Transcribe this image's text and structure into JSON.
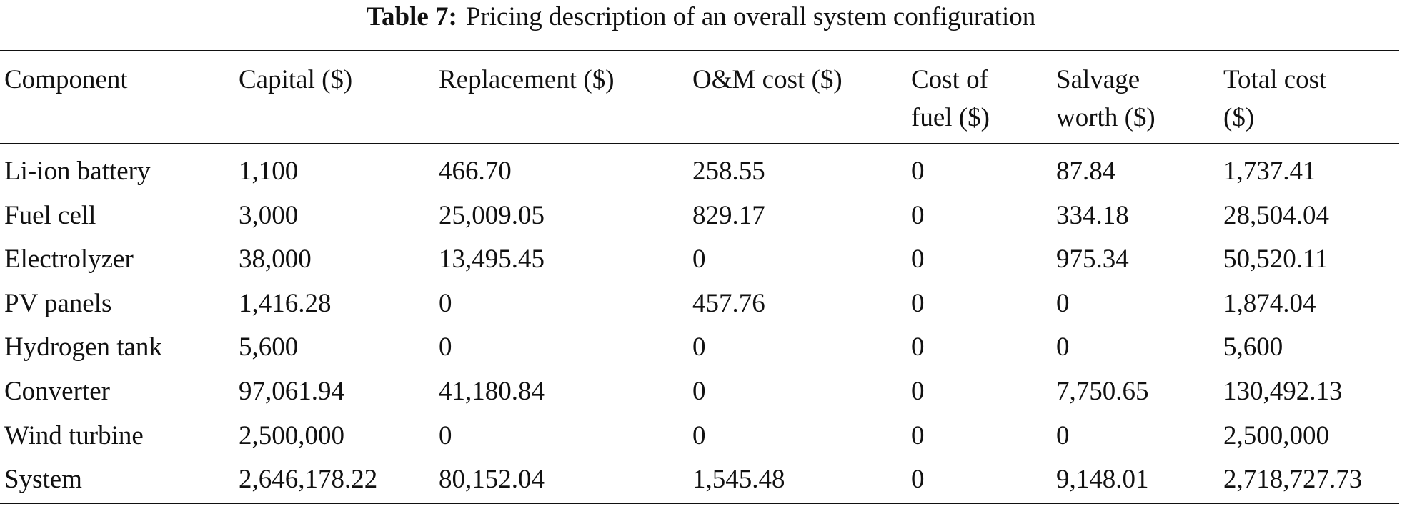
{
  "caption": {
    "label": "Table 7:",
    "text": "Pricing description of an overall system configuration"
  },
  "table": {
    "header": [
      [
        "Component"
      ],
      [
        "Capital ($)"
      ],
      [
        "Replacement ($)"
      ],
      [
        "O&M cost ($)"
      ],
      [
        "Cost of",
        "fuel ($)"
      ],
      [
        "Salvage",
        "worth ($)"
      ],
      [
        "Total cost",
        "($)"
      ]
    ],
    "rows": [
      [
        "Li-ion battery",
        "1,100",
        "466.70",
        "258.55",
        "0",
        "87.84",
        "1,737.41"
      ],
      [
        "Fuel cell",
        "3,000",
        "25,009.05",
        "829.17",
        "0",
        "334.18",
        "28,504.04"
      ],
      [
        "Electrolyzer",
        "38,000",
        "13,495.45",
        "0",
        "0",
        "975.34",
        "50,520.11"
      ],
      [
        "PV panels",
        "1,416.28",
        "0",
        "457.76",
        "0",
        "0",
        "1,874.04"
      ],
      [
        "Hydrogen tank",
        "5,600",
        "0",
        "0",
        "0",
        "0",
        "5,600"
      ],
      [
        "Converter",
        "97,061.94",
        "41,180.84",
        "0",
        "0",
        "7,750.65",
        "130,492.13"
      ],
      [
        "Wind turbine",
        "2,500,000",
        "0",
        "0",
        "0",
        "0",
        "2,500,000"
      ],
      [
        "System",
        "2,646,178.22",
        "80,152.04",
        "1,545.48",
        "0",
        "9,148.01",
        "2,718,727.73"
      ]
    ]
  }
}
